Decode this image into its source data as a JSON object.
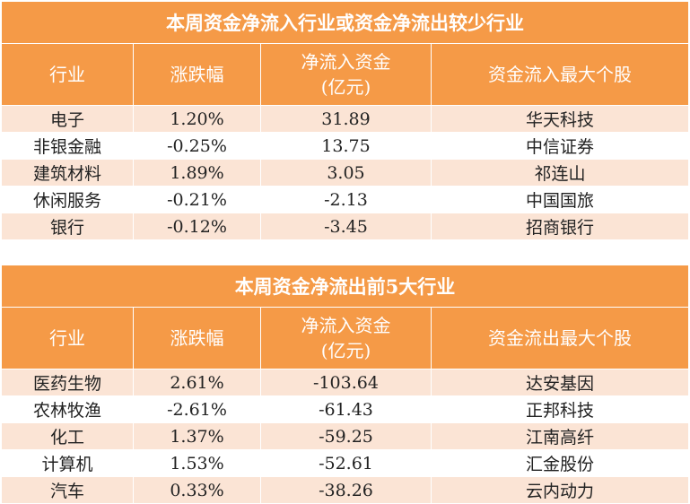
{
  "table1": {
    "title": "本周资金净流入行业或资金净流出较少行业",
    "headers": [
      "行业",
      "涨跌幅",
      "净流入资金",
      "(亿元)",
      "资金流入最大个股"
    ],
    "rows": [
      [
        "电子",
        "1.20%",
        "31.89",
        "华天科技"
      ],
      [
        "非银金融",
        "-0.25%",
        "13.75",
        "中信证券"
      ],
      [
        "建筑材料",
        "1.89%",
        "3.05",
        "祁连山"
      ],
      [
        "休闲服务",
        "-0.21%",
        "-2.13",
        "中国国旅"
      ],
      [
        "银行",
        "-0.12%",
        "-3.45",
        "招商银行"
      ]
    ]
  },
  "table2": {
    "title": "本周资金净流出前5大行业",
    "headers": [
      "行业",
      "涨跌幅",
      "净流入资金",
      "(亿元)",
      "资金流出最大个股"
    ],
    "rows": [
      [
        "医药生物",
        "2.61%",
        "-103.64",
        "达安基因"
      ],
      [
        "农林牧渔",
        "-2.61%",
        "-61.43",
        "正邦科技"
      ],
      [
        "化工",
        "1.37%",
        "-59.25",
        "江南高纤"
      ],
      [
        "计算机",
        "1.53%",
        "-52.61",
        "汇金股份"
      ],
      [
        "汽车",
        "0.33%",
        "-38.26",
        "云内动力"
      ]
    ]
  },
  "colors": {
    "header_bg": "#f59a47",
    "odd_row_bg": "#fbe4d5",
    "even_row_bg": "#ffffff"
  }
}
